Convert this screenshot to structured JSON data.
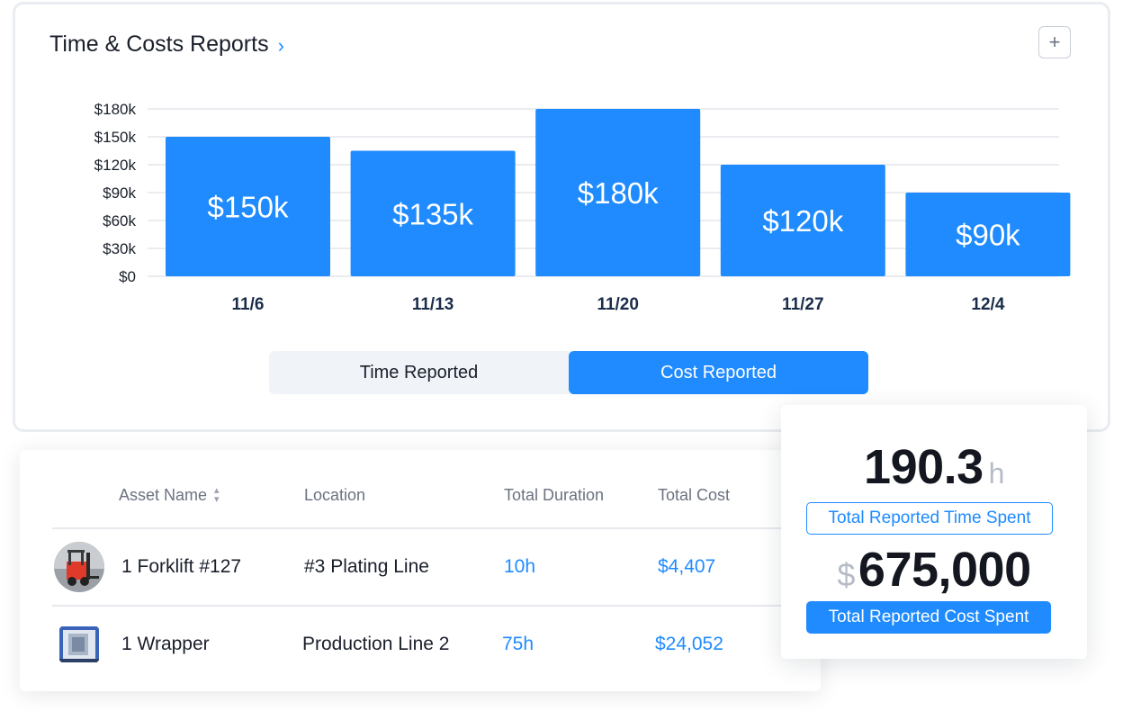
{
  "report": {
    "title": "Time & Costs Reports",
    "title_chevron": "›",
    "add_label": "+",
    "toggle": [
      "Time Reported",
      "Cost Reported"
    ],
    "toggle_active": 1
  },
  "chart_data": {
    "type": "bar",
    "categories": [
      "11/6",
      "11/13",
      "11/20",
      "11/27",
      "12/4"
    ],
    "values": [
      150,
      135,
      180,
      120,
      90
    ],
    "data_labels": [
      "$150k",
      "$135k",
      "$180k",
      "$120k",
      "$90k"
    ],
    "y_ticks": [
      0,
      30,
      60,
      90,
      120,
      150,
      180
    ],
    "y_tick_labels": [
      "$0",
      "$30k",
      "$60k",
      "$90k",
      "$120k",
      "$150k",
      "$180k"
    ],
    "ylim": [
      0,
      180
    ],
    "unit": "$k",
    "grid": true,
    "bar_color": "#1f8bff"
  },
  "table": {
    "headers": [
      "Asset Name",
      "Location",
      "Total Duration",
      "Total Cost"
    ],
    "sort_icon": "⌃⌄",
    "rows": [
      {
        "asset": "1 Forklift #127",
        "location": "#3 Plating Line",
        "duration": "10h",
        "cost": "$4,407",
        "thumb": "forklift-icon"
      },
      {
        "asset": "1 Wrapper",
        "location": "Production Line 2",
        "duration": "75h",
        "cost": "$24,052",
        "thumb": "wrapper-machine-icon"
      }
    ]
  },
  "summary": {
    "time_value": "190.3",
    "time_unit": "h",
    "time_label": "Total Reported Time Spent",
    "cost_currency": "$",
    "cost_value": "675,000",
    "cost_label": "Total Reported Cost Spent"
  },
  "colors": {
    "accent": "#1f8bff",
    "text": "#1a1f2b",
    "muted": "#6b7280"
  }
}
